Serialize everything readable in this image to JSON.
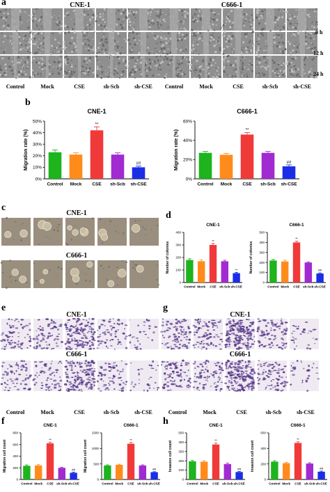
{
  "panel_letters": {
    "a": "a",
    "b": "b",
    "c": "c",
    "d": "d",
    "e": "e",
    "f": "f",
    "g": "g",
    "h": "h"
  },
  "scratch": {
    "titles": [
      "CNE-1",
      "C666-1"
    ],
    "time_labels": [
      "0 h",
      "12 h",
      "24 h"
    ],
    "group_labels": [
      "Control",
      "Mock",
      "CSE",
      "sh-Scb",
      "sh-CSE"
    ]
  },
  "colony_titles": [
    "CNE-1",
    "C666-1"
  ],
  "transwell_e_titles": [
    "CNE-1",
    "C666-1"
  ],
  "transwell_g_titles": [
    "CNE-1",
    "C666-1"
  ],
  "colors": {
    "bar": [
      "#1db41d",
      "#ff8c1a",
      "#f03a3a",
      "#a12ad1",
      "#1a2ee6"
    ],
    "scratch_bg": "#8f8f8f",
    "colony_bg": "#9a8f7e",
    "transwell_bg": "#efeaf2",
    "transwell_cell": "#5a3a8a"
  },
  "chart_data": [
    {
      "type": "bar",
      "panel": "b",
      "title": "CNE-1",
      "ylabel": "Migration rate (%)",
      "categories": [
        "Control",
        "Mock",
        "CSE",
        "sh-Scb",
        "sh-CSE"
      ],
      "values": [
        23,
        21,
        42,
        21,
        10
      ],
      "errors": [
        2,
        1.5,
        3,
        1.5,
        1
      ],
      "ylim": [
        0,
        50
      ],
      "yticks": [
        "0%",
        "10%",
        "20%",
        "30%",
        "40%",
        "50%"
      ],
      "annotations": [
        "",
        "",
        "**",
        "",
        "##"
      ]
    },
    {
      "type": "bar",
      "panel": "b",
      "title": "C666-1",
      "ylabel": "Migration rate (%)",
      "categories": [
        "Control",
        "Mock",
        "CSE",
        "sh-Scb",
        "sh-CSE"
      ],
      "values": [
        27,
        25,
        46,
        27,
        13
      ],
      "errors": [
        1.5,
        1.5,
        2,
        1.5,
        1.5
      ],
      "ylim": [
        0,
        60
      ],
      "yticks": [
        "0%",
        "20%",
        "40%",
        "60%"
      ],
      "annotations": [
        "",
        "",
        "**",
        "",
        "##"
      ]
    },
    {
      "type": "bar",
      "panel": "d",
      "title": "CNE-1",
      "ylabel": "Number of colonies",
      "categories": [
        "Control",
        "Mock",
        "CSE",
        "sh-Scb",
        "sh-CSE"
      ],
      "values": [
        180,
        170,
        300,
        170,
        75
      ],
      "errors": [
        10,
        10,
        12,
        8,
        6
      ],
      "ylim": [
        0,
        400
      ],
      "yticks": [
        "0",
        "100",
        "200",
        "300",
        "400"
      ],
      "annotations": [
        "",
        "",
        "**",
        "",
        "**"
      ]
    },
    {
      "type": "bar",
      "panel": "d",
      "title": "C666-1",
      "ylabel": "Number of colonies",
      "categories": [
        "Control",
        "Mock",
        "CSE",
        "sh-Scb",
        "sh-CSE"
      ],
      "values": [
        220,
        210,
        400,
        200,
        90
      ],
      "errors": [
        10,
        12,
        12,
        6,
        6
      ],
      "ylim": [
        0,
        500
      ],
      "yticks": [
        "0",
        "100",
        "200",
        "300",
        "400",
        "500"
      ],
      "annotations": [
        "",
        "",
        "**",
        "",
        "##"
      ]
    },
    {
      "type": "bar",
      "panel": "f",
      "title": "CNE-1",
      "ylabel": "Migration cell count",
      "categories": [
        "Control",
        "Mock",
        "CSE",
        "sh-Scb",
        "sh-CSE"
      ],
      "values": [
        235,
        240,
        620,
        200,
        115
      ],
      "errors": [
        15,
        15,
        20,
        10,
        10
      ],
      "ylim": [
        0,
        800
      ],
      "yticks": [
        "0",
        "200",
        "400",
        "600",
        "800"
      ],
      "annotations": [
        "",
        "",
        "**",
        "",
        "##"
      ]
    },
    {
      "type": "bar",
      "panel": "f",
      "title": "C666-1",
      "ylabel": "Migration cell count",
      "categories": [
        "Control",
        "Mock",
        "CSE",
        "sh-Scb",
        "sh-CSE"
      ],
      "values": [
        450,
        470,
        1150,
        450,
        235
      ],
      "errors": [
        20,
        20,
        40,
        20,
        15
      ],
      "ylim": [
        0,
        1500
      ],
      "yticks": [
        "0",
        "500",
        "1000",
        "1500"
      ],
      "annotations": [
        "",
        "",
        "**",
        "",
        "##"
      ]
    },
    {
      "type": "bar",
      "panel": "h",
      "title": "CNE-1",
      "ylabel": "Invasion cell count",
      "categories": [
        "Control",
        "Mock",
        "CSE",
        "sh-Scb",
        "sh-CSE"
      ],
      "values": [
        195,
        190,
        375,
        165,
        80
      ],
      "errors": [
        10,
        10,
        15,
        10,
        6
      ],
      "ylim": [
        0,
        500
      ],
      "yticks": [
        "0",
        "100",
        "200",
        "300",
        "400",
        "500"
      ],
      "annotations": [
        "",
        "",
        "**",
        "",
        "##"
      ]
    },
    {
      "type": "bar",
      "panel": "h",
      "title": "C666-1",
      "ylabel": "Invasion cell count",
      "categories": [
        "Control",
        "Mock",
        "CSE",
        "sh-Scb",
        "sh-CSE"
      ],
      "values": [
        230,
        210,
        470,
        205,
        100
      ],
      "errors": [
        12,
        10,
        15,
        10,
        8
      ],
      "ylim": [
        0,
        600
      ],
      "yticks": [
        "0",
        "200",
        "400",
        "600"
      ],
      "annotations": [
        "",
        "",
        "**",
        "",
        "##"
      ]
    }
  ]
}
